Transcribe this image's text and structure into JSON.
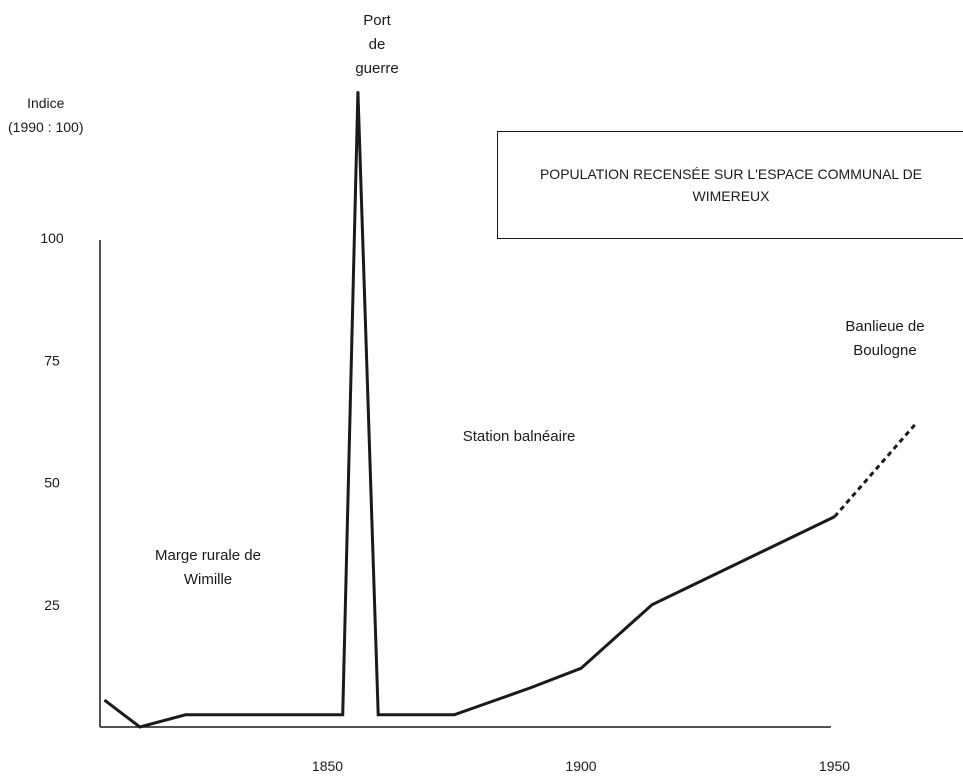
{
  "chart_data": {
    "type": "line",
    "title": "POPULATION RECENSÉE SUR L'ESPACE COMMUNAL DE WIMEREUX",
    "ylabel": [
      "Indice",
      "(1990 : 100)"
    ],
    "xlabel": "",
    "xlim": [
      1800,
      1975
    ],
    "ylim": [
      0,
      100
    ],
    "x_ticks": [
      1850,
      1900,
      1950
    ],
    "y_ticks": [
      25,
      50,
      75,
      100
    ],
    "grid": false,
    "series": [
      {
        "style": "solid",
        "points": [
          {
            "x": 1806,
            "y": 5.5
          },
          {
            "x": 1813,
            "y": 0
          },
          {
            "x": 1822,
            "y": 2.5
          },
          {
            "x": 1853,
            "y": 2.5
          },
          {
            "x": 1856,
            "y": 130
          },
          {
            "x": 1860,
            "y": 2.5
          },
          {
            "x": 1875,
            "y": 2.5
          },
          {
            "x": 1890,
            "y": 8
          },
          {
            "x": 1900,
            "y": 12
          },
          {
            "x": 1914,
            "y": 25
          },
          {
            "x": 1950,
            "y": 43
          }
        ]
      },
      {
        "style": "dashed",
        "points": [
          {
            "x": 1950,
            "y": 43
          },
          {
            "x": 1966,
            "y": 62
          }
        ]
      }
    ],
    "annotations": [
      {
        "id": "port",
        "lines": [
          "Port",
          "de",
          "guerre"
        ]
      },
      {
        "id": "marge",
        "lines": [
          "Marge rurale de",
          "Wimille"
        ]
      },
      {
        "id": "station",
        "lines": [
          "Station balnéaire"
        ]
      },
      {
        "id": "banlieue",
        "lines": [
          "Banlieue de",
          "Boulogne"
        ]
      }
    ]
  }
}
